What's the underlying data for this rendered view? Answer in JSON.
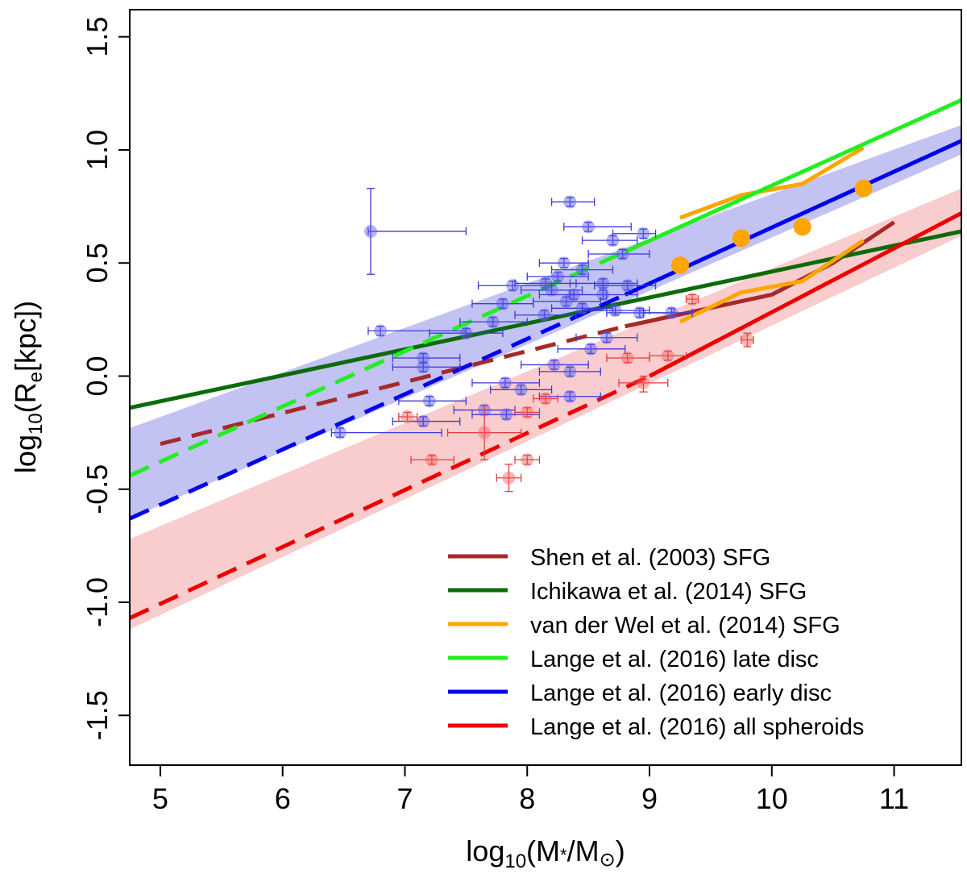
{
  "chart_data": {
    "type": "scatter",
    "xlabel_main": "log",
    "xlabel_sub": "10",
    "xlabel_rest": "(M",
    "xlabel_star": "*",
    "xlabel_mid": "/M",
    "xlabel_sun": "⊙",
    "xlabel_end": ")",
    "ylabel_main": "log",
    "ylabel_sub": "10",
    "ylabel_mid": "(R",
    "ylabel_e": "e",
    "ylabel_end": "[kpc])",
    "xlim": [
      4.75,
      11.55
    ],
    "ylim": [
      -1.72,
      1.62
    ],
    "xticks": [
      "5",
      "6",
      "7",
      "8",
      "9",
      "10",
      "11"
    ],
    "xtick_values": [
      5,
      6,
      7,
      8,
      9,
      10,
      11
    ],
    "yticks": [
      "-1.5",
      "-1.0",
      "-0.5",
      "0.0",
      "0.5",
      "1.0",
      "1.5"
    ],
    "ytick_values": [
      -1.5,
      -1.0,
      -0.5,
      0.0,
      0.5,
      1.0,
      1.5
    ],
    "bands": [
      {
        "name": "early disc uncertainty",
        "color": "#b3b3f0",
        "upper": [
          [
            4.75,
            -0.23
          ],
          [
            11.55,
            1.11
          ]
        ],
        "lower": [
          [
            4.75,
            -0.63
          ],
          [
            11.55,
            0.98
          ]
        ]
      },
      {
        "name": "spheroids uncertainty",
        "color": "#f7c0c0",
        "upper": [
          [
            4.75,
            -0.72
          ],
          [
            11.55,
            0.83
          ]
        ],
        "lower": [
          [
            4.75,
            -1.12
          ],
          [
            11.55,
            0.62
          ]
        ]
      }
    ],
    "lines": [
      {
        "name": "Shen dashed",
        "color": "#a52a2a",
        "dash": true,
        "points": [
          [
            5.0,
            -0.3
          ],
          [
            8.8,
            0.22
          ]
        ]
      },
      {
        "name": "Shen solid",
        "color": "#a52a2a",
        "dash": false,
        "points": [
          [
            8.8,
            0.22
          ],
          [
            10.0,
            0.36
          ],
          [
            10.5,
            0.5
          ],
          [
            11.0,
            0.68
          ]
        ]
      },
      {
        "name": "Ichikawa",
        "color": "#0b6b0b",
        "dash": false,
        "points": [
          [
            4.75,
            -0.14
          ],
          [
            11.55,
            0.64
          ]
        ]
      },
      {
        "name": "van der Wel upper",
        "color": "#ffa500",
        "dash": false,
        "points": [
          [
            9.25,
            0.7
          ],
          [
            9.75,
            0.8
          ],
          [
            10.25,
            0.85
          ],
          [
            10.75,
            1.01
          ]
        ]
      },
      {
        "name": "van der Wel lower",
        "color": "#ffa500",
        "dash": false,
        "points": [
          [
            9.25,
            0.24
          ],
          [
            9.75,
            0.37
          ],
          [
            10.25,
            0.42
          ],
          [
            10.75,
            0.6
          ]
        ]
      },
      {
        "name": "Lange late dashed",
        "color": "#22ee22",
        "dash": true,
        "points": [
          [
            4.75,
            -0.44
          ],
          [
            8.8,
            0.55
          ]
        ]
      },
      {
        "name": "Lange late solid",
        "color": "#22ee22",
        "dash": false,
        "points": [
          [
            8.8,
            0.55
          ],
          [
            11.55,
            1.22
          ]
        ]
      },
      {
        "name": "Lange early dashed",
        "color": "#0000ee",
        "dash": true,
        "points": [
          [
            4.75,
            -0.63
          ],
          [
            8.8,
            0.36
          ]
        ]
      },
      {
        "name": "Lange early solid",
        "color": "#0000ee",
        "dash": false,
        "points": [
          [
            8.8,
            0.36
          ],
          [
            11.55,
            1.04
          ]
        ]
      },
      {
        "name": "Lange spheroids dashed",
        "color": "#ee0000",
        "dash": true,
        "points": [
          [
            4.75,
            -1.07
          ],
          [
            9.0,
            0.0
          ]
        ]
      },
      {
        "name": "Lange spheroids solid",
        "color": "#ee0000",
        "dash": false,
        "points": [
          [
            9.0,
            0.0
          ],
          [
            11.55,
            0.72
          ]
        ]
      }
    ],
    "orange_points": [
      [
        9.25,
        0.49
      ],
      [
        9.75,
        0.61
      ],
      [
        10.25,
        0.66
      ],
      [
        10.75,
        0.83
      ]
    ],
    "blue_points": [
      [
        6.72,
        0.64,
        6.7,
        7.5,
        0.45,
        0.83
      ],
      [
        6.8,
        0.2,
        6.7,
        7.5,
        0.18,
        0.22
      ],
      [
        8.35,
        0.77,
        8.2,
        8.55,
        0.75,
        0.79
      ],
      [
        8.5,
        0.66,
        8.3,
        8.85,
        0.64,
        0.68
      ],
      [
        8.7,
        0.6,
        8.45,
        8.9,
        0.58,
        0.62
      ],
      [
        8.95,
        0.63,
        8.7,
        9.05,
        0.61,
        0.65
      ],
      [
        8.3,
        0.5,
        8.1,
        8.5,
        0.48,
        0.52
      ],
      [
        8.78,
        0.54,
        8.5,
        9.0,
        0.52,
        0.56
      ],
      [
        8.25,
        0.44,
        8.0,
        8.5,
        0.42,
        0.46
      ],
      [
        8.45,
        0.47,
        8.2,
        8.7,
        0.45,
        0.49
      ],
      [
        7.88,
        0.4,
        7.6,
        8.2,
        0.38,
        0.42
      ],
      [
        8.15,
        0.41,
        7.9,
        8.4,
        0.39,
        0.43
      ],
      [
        8.62,
        0.41,
        8.35,
        8.9,
        0.39,
        0.43
      ],
      [
        8.82,
        0.4,
        8.55,
        9.05,
        0.38,
        0.42
      ],
      [
        8.2,
        0.38,
        7.95,
        8.45,
        0.36,
        0.4
      ],
      [
        8.38,
        0.36,
        8.1,
        8.65,
        0.34,
        0.38
      ],
      [
        8.62,
        0.36,
        8.35,
        8.9,
        0.34,
        0.38
      ],
      [
        8.32,
        0.33,
        8.05,
        8.6,
        0.31,
        0.35
      ],
      [
        7.8,
        0.32,
        7.55,
        8.05,
        0.3,
        0.34
      ],
      [
        8.45,
        0.3,
        8.2,
        8.7,
        0.28,
        0.32
      ],
      [
        8.72,
        0.29,
        8.45,
        9.0,
        0.27,
        0.31
      ],
      [
        8.92,
        0.28,
        8.65,
        9.2,
        0.26,
        0.3
      ],
      [
        8.14,
        0.27,
        7.9,
        8.4,
        0.25,
        0.29
      ],
      [
        9.18,
        0.28,
        8.95,
        9.35,
        0.26,
        0.3
      ],
      [
        7.72,
        0.24,
        7.45,
        8.0,
        0.22,
        0.26
      ],
      [
        7.5,
        0.19,
        7.2,
        7.8,
        0.17,
        0.21
      ],
      [
        8.65,
        0.17,
        8.4,
        8.9,
        0.15,
        0.19
      ],
      [
        8.52,
        0.12,
        8.25,
        8.8,
        0.1,
        0.14
      ],
      [
        7.15,
        0.08,
        6.9,
        7.45,
        0.06,
        0.1
      ],
      [
        7.15,
        0.04,
        6.9,
        7.45,
        0.02,
        0.06
      ],
      [
        8.22,
        0.05,
        7.95,
        8.5,
        0.03,
        0.07
      ],
      [
        8.35,
        0.02,
        8.1,
        8.6,
        0.0,
        0.04
      ],
      [
        7.82,
        -0.03,
        7.55,
        8.1,
        -0.05,
        -0.01
      ],
      [
        7.95,
        -0.06,
        7.7,
        8.2,
        -0.08,
        -0.04
      ],
      [
        8.35,
        -0.09,
        8.1,
        8.6,
        -0.11,
        -0.07
      ],
      [
        7.2,
        -0.11,
        6.95,
        7.5,
        -0.13,
        -0.09
      ],
      [
        7.65,
        -0.15,
        7.4,
        7.9,
        -0.17,
        -0.13
      ],
      [
        7.83,
        -0.17,
        7.55,
        8.1,
        -0.19,
        -0.15
      ],
      [
        7.15,
        -0.2,
        6.9,
        7.45,
        -0.22,
        -0.18
      ],
      [
        6.47,
        -0.25,
        6.4,
        7.3,
        -0.27,
        -0.23
      ]
    ],
    "red_points": [
      [
        9.35,
        0.34,
        9.3,
        9.4,
        0.32,
        0.36
      ],
      [
        9.8,
        0.16,
        9.75,
        9.85,
        0.13,
        0.19
      ],
      [
        9.15,
        0.09,
        9.0,
        9.3,
        0.07,
        0.11
      ],
      [
        8.82,
        0.08,
        8.65,
        9.0,
        0.06,
        0.1
      ],
      [
        8.95,
        -0.03,
        8.75,
        9.15,
        -0.07,
        0.0
      ],
      [
        8.15,
        -0.1,
        8.05,
        8.25,
        -0.12,
        -0.08
      ],
      [
        8.0,
        -0.16,
        7.9,
        8.1,
        -0.18,
        -0.14
      ],
      [
        7.02,
        -0.18,
        6.95,
        7.1,
        -0.2,
        -0.16
      ],
      [
        7.65,
        -0.25,
        7.35,
        7.95,
        -0.37,
        -0.13
      ],
      [
        7.22,
        -0.37,
        7.05,
        7.4,
        -0.39,
        -0.35
      ],
      [
        8.0,
        -0.37,
        7.9,
        8.1,
        -0.39,
        -0.35
      ],
      [
        7.85,
        -0.45,
        7.75,
        7.95,
        -0.51,
        -0.39
      ]
    ],
    "legend": [
      {
        "label": "Shen et al. (2003) SFG",
        "color": "#a52a2a"
      },
      {
        "label": "Ichikawa et al. (2014) SFG",
        "color": "#0b6b0b"
      },
      {
        "label": "van der Wel et al. (2014) SFG",
        "color": "#ffa500"
      },
      {
        "label": "Lange et al. (2016) late disc",
        "color": "#22ee22"
      },
      {
        "label": "Lange et al. (2016) early disc",
        "color": "#0000ee"
      },
      {
        "label": "Lange et al. (2016) all spheroids",
        "color": "#ee0000"
      }
    ],
    "legend_position": "bottom-right"
  }
}
